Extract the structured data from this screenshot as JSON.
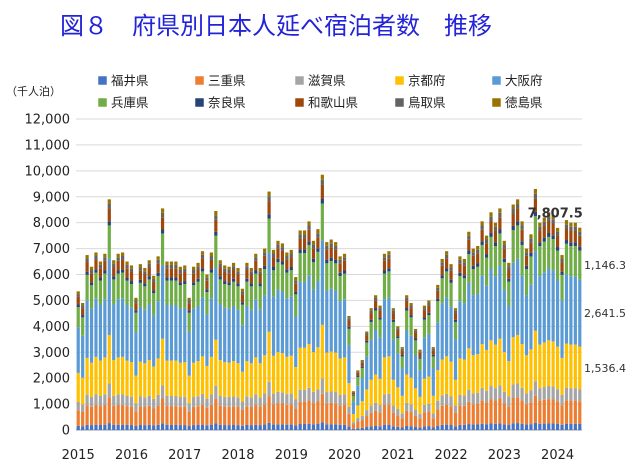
{
  "title": "図８　府県別日本人延べ宿泊者数　推移",
  "unit": "（千人泊）",
  "chart_data": {
    "type": "bar",
    "stacked": true,
    "title": "図８　府県別日本人延べ宿泊者数　推移",
    "ylabel": "（千人泊）",
    "ylim": [
      0,
      12000
    ],
    "yticks": [
      0,
      1000,
      2000,
      3000,
      4000,
      5000,
      6000,
      7000,
      8000,
      9000,
      10000,
      11000,
      12000
    ],
    "ytick_labels": [
      "0",
      "1,000",
      "2,000",
      "3,000",
      "4,000",
      "5,000",
      "6,000",
      "7,000",
      "8,000",
      "9,000",
      "10,000",
      "11,000",
      "12,000"
    ],
    "x_labels": [
      "2015",
      "2016",
      "2017",
      "2018",
      "2019",
      "2020",
      "2021",
      "2022",
      "2023",
      "2024"
    ],
    "period": {
      "start": "2015-01",
      "frequency": "monthly"
    },
    "legend_position": "top",
    "series": [
      {
        "name": "福井県",
        "color": "#4472c4",
        "share": 0.03
      },
      {
        "name": "三重県",
        "color": "#ed7d31",
        "share": 0.112
      },
      {
        "name": "滋賀県",
        "color": "#a5a5a5",
        "share": 0.06
      },
      {
        "name": "京都府",
        "color": "#ffc000",
        "share": 0.21
      },
      {
        "name": "大阪府",
        "color": "#5b9bd5",
        "share": 0.33
      },
      {
        "name": "兵庫県",
        "color": "#70ad47",
        "share": 0.145
      },
      {
        "name": "奈良県",
        "color": "#264478",
        "share": 0.018
      },
      {
        "name": "和歌山県",
        "color": "#9e480e",
        "share": 0.055
      },
      {
        "name": "鳥取県",
        "color": "#636363",
        "share": 0.02
      },
      {
        "name": "徳島県",
        "color": "#997300",
        "share": 0.02
      }
    ],
    "totals": [
      5350,
      4900,
      6750,
      6300,
      6850,
      6500,
      6800,
      8900,
      6550,
      6800,
      6850,
      6500,
      6350,
      5100,
      6400,
      6250,
      6550,
      5950,
      6700,
      8550,
      6500,
      6500,
      6500,
      6300,
      6350,
      5100,
      6300,
      6450,
      6900,
      6000,
      6850,
      8450,
      6550,
      6350,
      6300,
      6450,
      6250,
      5450,
      6450,
      6250,
      6800,
      6250,
      7000,
      9200,
      6950,
      7300,
      7200,
      6850,
      6950,
      5900,
      7700,
      7700,
      8050,
      7300,
      7750,
      9850,
      7250,
      7350,
      7250,
      6700,
      6800,
      4400,
      1500,
      2300,
      2700,
      3800,
      4700,
      5200,
      4800,
      6800,
      6900,
      4700,
      4000,
      3200,
      5200,
      4900,
      3900,
      3100,
      4800,
      5000,
      3200,
      5600,
      6600,
      6900,
      6400,
      4700,
      6700,
      6600,
      7650,
      7000,
      7100,
      8050,
      7500,
      8400,
      8000,
      8550,
      7300,
      6450,
      8700,
      8900,
      8050,
      7000,
      7550,
      9300,
      8000,
      8200,
      8400,
      8300,
      7800,
      6750,
      8100,
      8000,
      8000,
      7807.5
    ],
    "annotations": [
      {
        "text": "7,807.5",
        "value": 7807.5,
        "style": "total"
      },
      {
        "text": "1,146.3",
        "value": 1146.3,
        "series": "兵庫県"
      },
      {
        "text": "2,641.5",
        "value": 2641.5,
        "series": "大阪府"
      },
      {
        "text": "1,536.4",
        "value": 1536.4,
        "series": "京都府"
      }
    ]
  }
}
